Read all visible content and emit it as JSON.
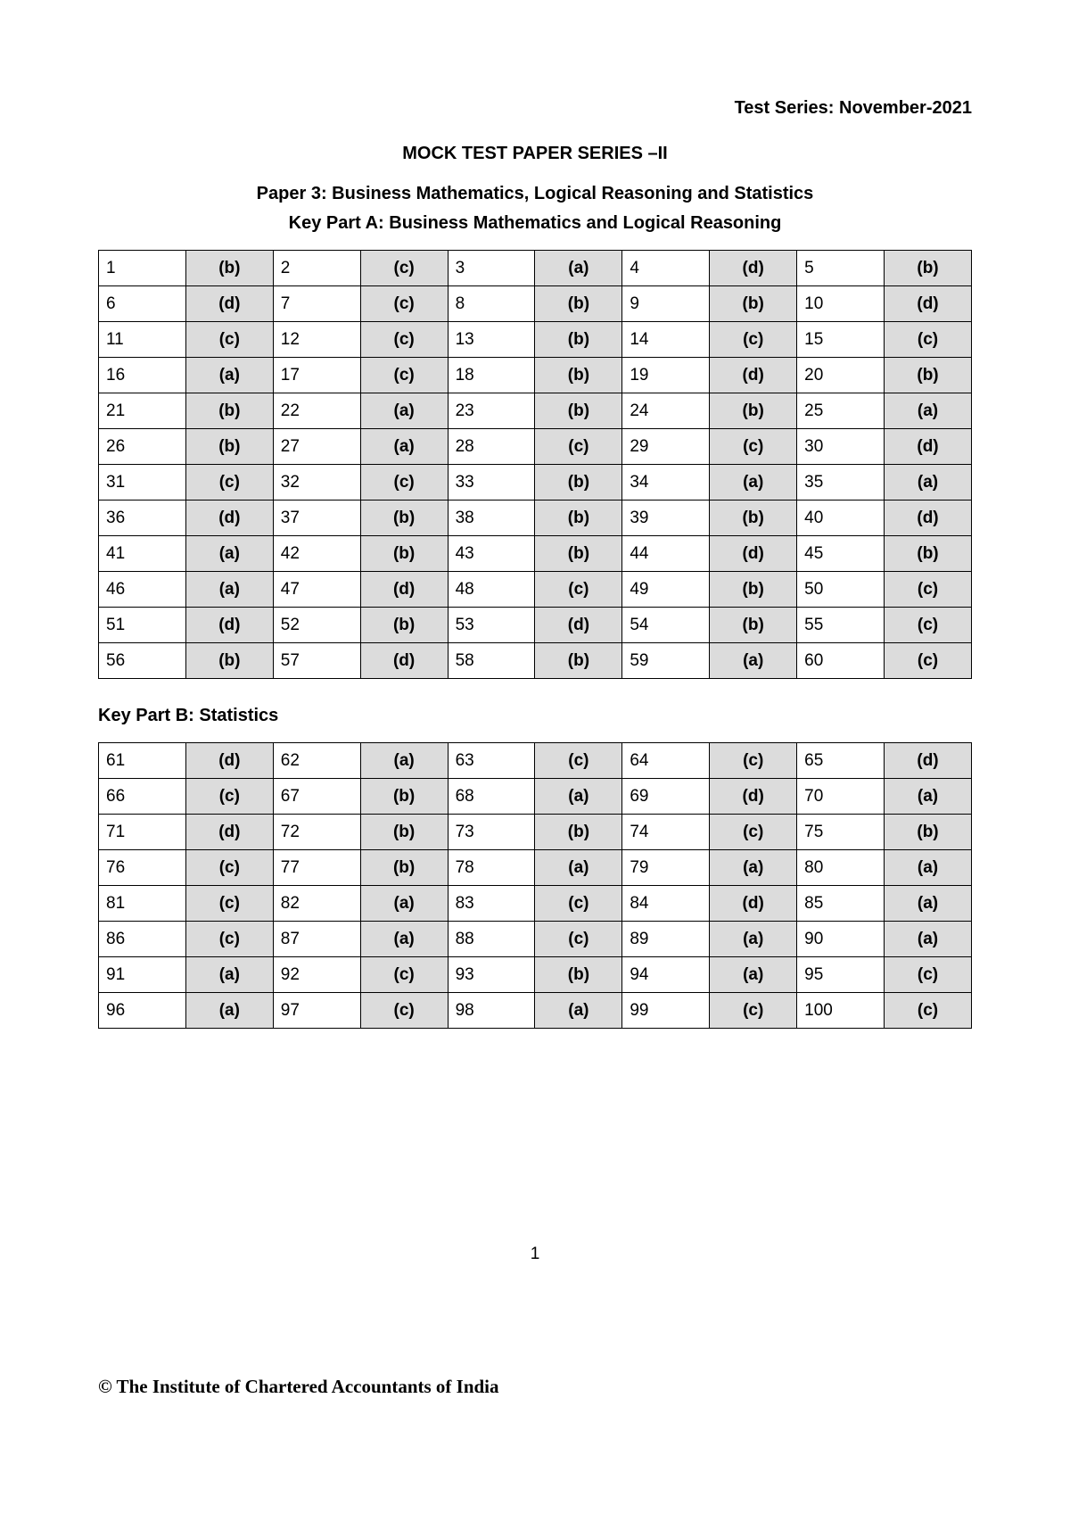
{
  "header": {
    "test_series": "Test Series: November-2021",
    "series_title": "MOCK TEST PAPER SERIES –II",
    "paper_title": "Paper 3: Business Mathematics, Logical Reasoning and Statistics",
    "key_part_a": "Key Part A: Business Mathematics and Logical Reasoning",
    "key_part_b": "Key Part B: Statistics"
  },
  "table_a": {
    "type": "table",
    "columns_per_row": 5,
    "qnum_bg": "#ffffff",
    "ans_bg": "#dcdcdc",
    "border_color": "#000000",
    "rows": [
      [
        {
          "q": "1",
          "a": "(b)"
        },
        {
          "q": "2",
          "a": "(c)"
        },
        {
          "q": "3",
          "a": "(a)"
        },
        {
          "q": "4",
          "a": "(d)"
        },
        {
          "q": "5",
          "a": "(b)"
        }
      ],
      [
        {
          "q": "6",
          "a": "(d)"
        },
        {
          "q": "7",
          "a": "(c)"
        },
        {
          "q": "8",
          "a": "(b)"
        },
        {
          "q": "9",
          "a": "(b)"
        },
        {
          "q": "10",
          "a": "(d)"
        }
      ],
      [
        {
          "q": "11",
          "a": "(c)"
        },
        {
          "q": "12",
          "a": "(c)"
        },
        {
          "q": "13",
          "a": "(b)"
        },
        {
          "q": "14",
          "a": "(c)"
        },
        {
          "q": "15",
          "a": "(c)"
        }
      ],
      [
        {
          "q": "16",
          "a": "(a)"
        },
        {
          "q": "17",
          "a": "(c)"
        },
        {
          "q": "18",
          "a": "(b)"
        },
        {
          "q": "19",
          "a": "(d)"
        },
        {
          "q": "20",
          "a": "(b)"
        }
      ],
      [
        {
          "q": "21",
          "a": "(b)"
        },
        {
          "q": "22",
          "a": "(a)"
        },
        {
          "q": "23",
          "a": "(b)"
        },
        {
          "q": "24",
          "a": "(b)"
        },
        {
          "q": "25",
          "a": "(a)"
        }
      ],
      [
        {
          "q": "26",
          "a": "(b)"
        },
        {
          "q": "27",
          "a": "(a)"
        },
        {
          "q": "28",
          "a": "(c)"
        },
        {
          "q": "29",
          "a": "(c)"
        },
        {
          "q": "30",
          "a": "(d)"
        }
      ],
      [
        {
          "q": "31",
          "a": "(c)"
        },
        {
          "q": "32",
          "a": "(c)"
        },
        {
          "q": "33",
          "a": "(b)"
        },
        {
          "q": "34",
          "a": "(a)"
        },
        {
          "q": "35",
          "a": "(a)"
        }
      ],
      [
        {
          "q": "36",
          "a": "(d)"
        },
        {
          "q": "37",
          "a": "(b)"
        },
        {
          "q": "38",
          "a": "(b)"
        },
        {
          "q": "39",
          "a": "(b)"
        },
        {
          "q": "40",
          "a": "(d)"
        }
      ],
      [
        {
          "q": "41",
          "a": "(a)"
        },
        {
          "q": "42",
          "a": "(b)"
        },
        {
          "q": "43",
          "a": "(b)"
        },
        {
          "q": "44",
          "a": "(d)"
        },
        {
          "q": "45",
          "a": "(b)"
        }
      ],
      [
        {
          "q": "46",
          "a": "(a)"
        },
        {
          "q": "47",
          "a": "(d)"
        },
        {
          "q": "48",
          "a": "(c)"
        },
        {
          "q": "49",
          "a": "(b)"
        },
        {
          "q": "50",
          "a": "(c)"
        }
      ],
      [
        {
          "q": "51",
          "a": "(d)"
        },
        {
          "q": "52",
          "a": "(b)"
        },
        {
          "q": "53",
          "a": "(d)"
        },
        {
          "q": "54",
          "a": "(b)"
        },
        {
          "q": "55",
          "a": "(c)"
        }
      ],
      [
        {
          "q": "56",
          "a": "(b)"
        },
        {
          "q": "57",
          "a": "(d)"
        },
        {
          "q": "58",
          "a": "(b)"
        },
        {
          "q": "59",
          "a": "(a)"
        },
        {
          "q": "60",
          "a": "(c)"
        }
      ]
    ]
  },
  "table_b": {
    "type": "table",
    "columns_per_row": 5,
    "qnum_bg": "#ffffff",
    "ans_bg": "#dcdcdc",
    "border_color": "#000000",
    "rows": [
      [
        {
          "q": "61",
          "a": "(d)"
        },
        {
          "q": "62",
          "a": "(a)"
        },
        {
          "q": "63",
          "a": "(c)"
        },
        {
          "q": "64",
          "a": "(c)"
        },
        {
          "q": "65",
          "a": "(d)"
        }
      ],
      [
        {
          "q": "66",
          "a": "(c)"
        },
        {
          "q": "67",
          "a": "(b)"
        },
        {
          "q": "68",
          "a": "(a)"
        },
        {
          "q": "69",
          "a": "(d)"
        },
        {
          "q": "70",
          "a": "(a)"
        }
      ],
      [
        {
          "q": "71",
          "a": "(d)"
        },
        {
          "q": "72",
          "a": "(b)"
        },
        {
          "q": "73",
          "a": "(b)"
        },
        {
          "q": "74",
          "a": "(c)"
        },
        {
          "q": "75",
          "a": "(b)"
        }
      ],
      [
        {
          "q": "76",
          "a": "(c)"
        },
        {
          "q": "77",
          "a": "(b)"
        },
        {
          "q": "78",
          "a": "(a)"
        },
        {
          "q": "79",
          "a": "(a)"
        },
        {
          "q": "80",
          "a": "(a)"
        }
      ],
      [
        {
          "q": "81",
          "a": "(c)"
        },
        {
          "q": "82",
          "a": "(a)"
        },
        {
          "q": "83",
          "a": "(c)"
        },
        {
          "q": "84",
          "a": "(d)"
        },
        {
          "q": "85",
          "a": "(a)"
        }
      ],
      [
        {
          "q": "86",
          "a": "(c)"
        },
        {
          "q": "87",
          "a": "(a)"
        },
        {
          "q": "88",
          "a": "(c)"
        },
        {
          "q": "89",
          "a": "(a)"
        },
        {
          "q": "90",
          "a": "(a)"
        }
      ],
      [
        {
          "q": "91",
          "a": "(a)"
        },
        {
          "q": "92",
          "a": "(c)"
        },
        {
          "q": "93",
          "a": "(b)"
        },
        {
          "q": "94",
          "a": "(a)"
        },
        {
          "q": "95",
          "a": "(c)"
        }
      ],
      [
        {
          "q": "96",
          "a": "(a)"
        },
        {
          "q": "97",
          "a": "(c)"
        },
        {
          "q": "98",
          "a": "(a)"
        },
        {
          "q": "99",
          "a": "(c)"
        },
        {
          "q": "100",
          "a": "(c)"
        }
      ]
    ]
  },
  "footer": {
    "page_number": "1",
    "copyright": "© The Institute of Chartered Accountants of India"
  }
}
